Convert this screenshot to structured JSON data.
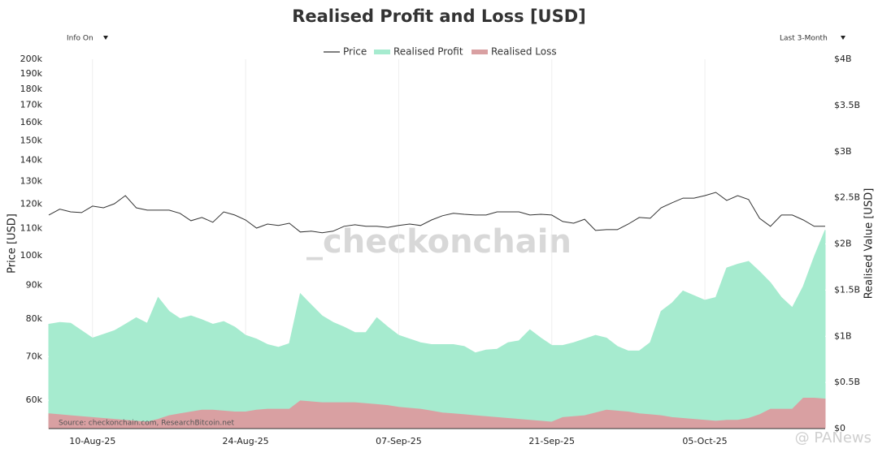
{
  "chart_data": {
    "type": "line",
    "title": "Realised Profit and Loss [USD]",
    "controls": {
      "left": "Info On",
      "right": "Last 3-Month"
    },
    "ylabel": "Price [USD]",
    "y2label": "Realised Value [USD]",
    "watermark": "_checkonchain",
    "source": "Source: checkonchain.com, ResearchBitcoin.net",
    "corner_mark": "@ PANews",
    "yscale": "log",
    "grid": "x",
    "x": [
      "06-Aug-25",
      "07-Aug-25",
      "08-Aug-25",
      "09-Aug-25",
      "10-Aug-25",
      "11-Aug-25",
      "12-Aug-25",
      "13-Aug-25",
      "14-Aug-25",
      "15-Aug-25",
      "16-Aug-25",
      "17-Aug-25",
      "18-Aug-25",
      "19-Aug-25",
      "20-Aug-25",
      "21-Aug-25",
      "22-Aug-25",
      "23-Aug-25",
      "24-Aug-25",
      "25-Aug-25",
      "26-Aug-25",
      "27-Aug-25",
      "28-Aug-25",
      "29-Aug-25",
      "30-Aug-25",
      "31-Aug-25",
      "01-Sep-25",
      "02-Sep-25",
      "03-Sep-25",
      "04-Sep-25",
      "05-Sep-25",
      "06-Sep-25",
      "07-Sep-25",
      "08-Sep-25",
      "09-Sep-25",
      "10-Sep-25",
      "11-Sep-25",
      "12-Sep-25",
      "13-Sep-25",
      "14-Sep-25",
      "15-Sep-25",
      "16-Sep-25",
      "17-Sep-25",
      "18-Sep-25",
      "19-Sep-25",
      "20-Sep-25",
      "21-Sep-25",
      "22-Sep-25",
      "23-Sep-25",
      "24-Sep-25",
      "25-Sep-25",
      "26-Sep-25",
      "27-Sep-25",
      "28-Sep-25",
      "29-Sep-25",
      "30-Sep-25",
      "01-Oct-25",
      "02-Oct-25",
      "03-Oct-25",
      "04-Oct-25",
      "05-Oct-25",
      "06-Oct-25",
      "07-Oct-25",
      "08-Oct-25",
      "09-Oct-25",
      "10-Oct-25",
      "11-Oct-25",
      "12-Oct-25",
      "13-Oct-25",
      "14-Oct-25",
      "15-Oct-25",
      "16-Oct-25"
    ],
    "xticks": [
      "10-Aug-25",
      "24-Aug-25",
      "07-Sep-25",
      "21-Sep-25",
      "05-Oct-25"
    ],
    "ylim": [
      54300,
      200000
    ],
    "yticks": [
      {
        "value": 60000,
        "label": "60k"
      },
      {
        "value": 70000,
        "label": "70k"
      },
      {
        "value": 80000,
        "label": "80k"
      },
      {
        "value": 90000,
        "label": "90k"
      },
      {
        "value": 100000,
        "label": "100k"
      },
      {
        "value": 110000,
        "label": "110k"
      },
      {
        "value": 120000,
        "label": "120k"
      },
      {
        "value": 130000,
        "label": "130k"
      },
      {
        "value": 140000,
        "label": "140k"
      },
      {
        "value": 150000,
        "label": "150k"
      },
      {
        "value": 160000,
        "label": "160k"
      },
      {
        "value": 170000,
        "label": "170k"
      },
      {
        "value": 180000,
        "label": "180k"
      },
      {
        "value": 190000,
        "label": "190k"
      },
      {
        "value": 200000,
        "label": "200k"
      }
    ],
    "y2lim": [
      0,
      4
    ],
    "y2ticks": [
      {
        "value": 0,
        "label": "$0"
      },
      {
        "value": 0.5,
        "label": "$0.5B"
      },
      {
        "value": 1,
        "label": "$1B"
      },
      {
        "value": 1.5,
        "label": "$1.5B"
      },
      {
        "value": 2,
        "label": "$2B"
      },
      {
        "value": 2.5,
        "label": "$2.5B"
      },
      {
        "value": 3,
        "label": "$3B"
      },
      {
        "value": 3.5,
        "label": "$3.5B"
      },
      {
        "value": 4,
        "label": "$4B"
      }
    ],
    "series": [
      {
        "name": "Price",
        "type": "line",
        "axis": "y",
        "color": "#333333",
        "values": [
          115400,
          117800,
          116700,
          116400,
          119100,
          118400,
          120100,
          123600,
          118400,
          117400,
          117400,
          117400,
          116100,
          113100,
          114400,
          112500,
          116700,
          115400,
          113400,
          110200,
          111800,
          111200,
          112100,
          108700,
          109000,
          108400,
          109000,
          110900,
          111500,
          110900,
          110900,
          110500,
          111200,
          111800,
          111200,
          113400,
          115100,
          116100,
          115700,
          115400,
          115400,
          116700,
          116700,
          116700,
          115400,
          115700,
          115400,
          112800,
          112100,
          113700,
          109300,
          109600,
          109600,
          111800,
          114400,
          114100,
          118400,
          120500,
          122500,
          122500,
          123600,
          125000,
          121500,
          123600,
          121900,
          114100,
          110900,
          115400,
          115400,
          113400,
          110900,
          110900
        ]
      },
      {
        "name": "Realised Profit",
        "type": "area",
        "axis": "y2",
        "color": "#a6ebcf",
        "values": [
          1.13,
          1.15,
          1.14,
          1.06,
          0.98,
          1.02,
          1.06,
          1.13,
          1.2,
          1.14,
          1.42,
          1.27,
          1.19,
          1.22,
          1.18,
          1.13,
          1.16,
          1.1,
          1.01,
          0.97,
          0.91,
          0.88,
          0.92,
          1.46,
          1.34,
          1.22,
          1.15,
          1.1,
          1.04,
          1.04,
          1.2,
          1.1,
          1.01,
          0.97,
          0.93,
          0.91,
          0.91,
          0.91,
          0.89,
          0.82,
          0.85,
          0.86,
          0.93,
          0.95,
          1.07,
          0.98,
          0.9,
          0.9,
          0.93,
          0.97,
          1.01,
          0.98,
          0.89,
          0.84,
          0.84,
          0.93,
          1.27,
          1.36,
          1.49,
          1.44,
          1.39,
          1.42,
          1.74,
          1.78,
          1.81,
          1.7,
          1.58,
          1.42,
          1.31,
          1.54,
          1.86,
          2.15
        ]
      },
      {
        "name": "Realised Loss",
        "type": "area",
        "axis": "y2",
        "color": "#d9a0a2",
        "values": [
          0.16,
          0.15,
          0.14,
          0.13,
          0.12,
          0.11,
          0.1,
          0.09,
          0.08,
          0.07,
          0.1,
          0.14,
          0.16,
          0.18,
          0.2,
          0.2,
          0.19,
          0.18,
          0.18,
          0.2,
          0.21,
          0.21,
          0.21,
          0.3,
          0.29,
          0.28,
          0.28,
          0.28,
          0.28,
          0.27,
          0.26,
          0.25,
          0.23,
          0.22,
          0.21,
          0.19,
          0.17,
          0.16,
          0.15,
          0.14,
          0.13,
          0.12,
          0.11,
          0.1,
          0.09,
          0.08,
          0.07,
          0.12,
          0.13,
          0.14,
          0.17,
          0.2,
          0.19,
          0.18,
          0.16,
          0.15,
          0.14,
          0.12,
          0.11,
          0.1,
          0.09,
          0.08,
          0.09,
          0.09,
          0.11,
          0.15,
          0.21,
          0.21,
          0.21,
          0.33,
          0.33,
          0.32
        ]
      }
    ]
  }
}
